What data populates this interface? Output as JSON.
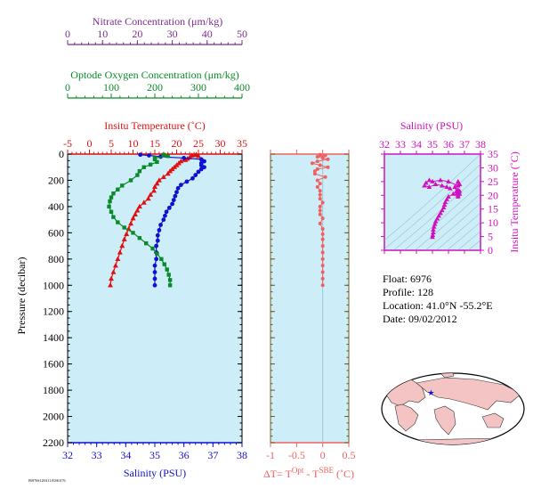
{
  "colors": {
    "nitrate": "#7b2d8e",
    "oxygen": "#0b8a2a",
    "temperature": "#e01010",
    "salinity": "#1010d0",
    "salinity_ts": "#d010c0",
    "delta_t": "#f06060",
    "plot_bg": "#cdeef8",
    "delta_axis": "#6b5a1a"
  },
  "info": {
    "float": "Float:  6976",
    "profile": "Profile:  128",
    "location": "Location:  41.0°N  -55.2°E",
    "date": "Date:  09/02/2012"
  },
  "footer_code": "F6976S128A11.E0A0176",
  "chart_data": [
    {
      "id": "main-profile",
      "type": "line",
      "ylabel": "Pressure (decibar)",
      "ylim": [
        2200,
        0
      ],
      "yticks": [
        0,
        200,
        400,
        600,
        800,
        1000,
        1200,
        1400,
        1600,
        1800,
        2000,
        2200
      ],
      "axes": {
        "nitrate": {
          "label": "Nitrate Concentration (μm/kg)",
          "range": [
            0,
            50
          ],
          "ticks": [
            0,
            10,
            20,
            30,
            40,
            50
          ]
        },
        "oxygen": {
          "label": "Optode Oxygen Concentration (μm/kg)",
          "range": [
            0,
            400
          ],
          "ticks": [
            0,
            100,
            200,
            300,
            400
          ]
        },
        "temperature": {
          "label": "Insitu Temperature (˚C)",
          "range": [
            -5,
            35
          ],
          "ticks": [
            -5,
            0,
            5,
            10,
            15,
            20,
            25,
            30,
            35
          ]
        },
        "salinity": {
          "label": "Salinity (PSU)",
          "range": [
            32,
            38
          ],
          "ticks": [
            32,
            33,
            34,
            35,
            36,
            37,
            38
          ]
        }
      },
      "series": [
        {
          "axis": "temperature",
          "marker": "triangle",
          "points": [
            [
              24.5,
              5
            ],
            [
              23.5,
              10
            ],
            [
              25,
              15
            ],
            [
              23,
              25
            ],
            [
              22.5,
              35
            ],
            [
              22,
              45
            ],
            [
              21,
              55
            ],
            [
              20.5,
              70
            ],
            [
              20,
              85
            ],
            [
              19.5,
              100
            ],
            [
              19,
              115
            ],
            [
              18.5,
              130
            ],
            [
              18,
              150
            ],
            [
              17,
              175
            ],
            [
              16,
              200
            ],
            [
              15.5,
              225
            ],
            [
              15,
              250
            ],
            [
              14.8,
              280
            ],
            [
              14,
              310
            ],
            [
              13.5,
              340
            ],
            [
              12.5,
              370
            ],
            [
              11.5,
              400
            ],
            [
              11,
              430
            ],
            [
              10.5,
              460
            ],
            [
              10,
              490
            ],
            [
              9.5,
              530
            ],
            [
              9,
              570
            ],
            [
              8.5,
              610
            ],
            [
              8,
              650
            ],
            [
              7.5,
              700
            ],
            [
              7,
              750
            ],
            [
              6.5,
              800
            ],
            [
              6,
              850
            ],
            [
              5.5,
              900
            ],
            [
              5,
              950
            ],
            [
              4.8,
              1000
            ]
          ]
        },
        {
          "axis": "salinity",
          "marker": "circle",
          "points": [
            [
              34.5,
              5
            ],
            [
              34.8,
              10
            ],
            [
              35.2,
              20
            ],
            [
              36,
              30
            ],
            [
              36.6,
              40
            ],
            [
              36.7,
              55
            ],
            [
              36.6,
              70
            ],
            [
              36.6,
              85
            ],
            [
              36.7,
              100
            ],
            [
              36.6,
              115
            ],
            [
              36.5,
              135
            ],
            [
              36.4,
              160
            ],
            [
              36.3,
              185
            ],
            [
              36.1,
              210
            ],
            [
              35.9,
              235
            ],
            [
              35.8,
              260
            ],
            [
              35.75,
              290
            ],
            [
              35.7,
              320
            ],
            [
              35.65,
              350
            ],
            [
              35.6,
              380
            ],
            [
              35.5,
              410
            ],
            [
              35.4,
              440
            ],
            [
              35.35,
              470
            ],
            [
              35.3,
              500
            ],
            [
              35.2,
              540
            ],
            [
              35.15,
              580
            ],
            [
              35.1,
              620
            ],
            [
              35.1,
              660
            ],
            [
              35.05,
              700
            ],
            [
              35.05,
              750
            ],
            [
              35.05,
              800
            ],
            [
              35,
              850
            ],
            [
              35,
              900
            ],
            [
              35,
              950
            ],
            [
              35,
              1000
            ]
          ]
        },
        {
          "axis": "oxygen",
          "marker": "square",
          "points": [
            [
              220,
              5
            ],
            [
              230,
              15
            ],
            [
              200,
              30
            ],
            [
              200,
              40
            ],
            [
              205,
              60
            ],
            [
              190,
              80
            ],
            [
              175,
              100
            ],
            [
              165,
              130
            ],
            [
              160,
              160
            ],
            [
              145,
              200
            ],
            [
              125,
              240
            ],
            [
              115,
              270
            ],
            [
              105,
              300
            ],
            [
              100,
              330
            ],
            [
              97,
              360
            ],
            [
              95,
              400
            ],
            [
              100,
              440
            ],
            [
              105,
              480
            ],
            [
              115,
              520
            ],
            [
              130,
              560
            ],
            [
              150,
              600
            ],
            [
              165,
              640
            ],
            [
              180,
              680
            ],
            [
              195,
              720
            ],
            [
              205,
              760
            ],
            [
              215,
              800
            ],
            [
              222,
              840
            ],
            [
              228,
              880
            ],
            [
              232,
              920
            ],
            [
              235,
              960
            ],
            [
              235,
              1000
            ]
          ]
        }
      ]
    },
    {
      "id": "delta-t",
      "type": "line",
      "xlabel": "ΔT= T",
      "xlabel_sup1": "Opt",
      "xlabel_mid": " - T",
      "xlabel_sup2": "SBE",
      "xlabel_end": " (˚C)",
      "xlim": [
        -1.0,
        0.5
      ],
      "xticks": [
        -1.0,
        -0.5,
        0.0,
        0.5
      ],
      "ylim": [
        2200,
        0
      ],
      "points": [
        [
          -0.05,
          5
        ],
        [
          0.05,
          10
        ],
        [
          -0.1,
          20
        ],
        [
          0.0,
          30
        ],
        [
          0.1,
          40
        ],
        [
          -0.1,
          55
        ],
        [
          -0.2,
          70
        ],
        [
          -0.05,
          85
        ],
        [
          0.1,
          100
        ],
        [
          -0.1,
          115
        ],
        [
          -0.15,
          130
        ],
        [
          -0.15,
          150
        ],
        [
          0.05,
          175
        ],
        [
          -0.1,
          200
        ],
        [
          -0.05,
          225
        ],
        [
          -0.1,
          250
        ],
        [
          -0.05,
          280
        ],
        [
          -0.05,
          310
        ],
        [
          -0.05,
          340
        ],
        [
          0.0,
          370
        ],
        [
          -0.05,
          400
        ],
        [
          -0.05,
          430
        ],
        [
          -0.05,
          460
        ],
        [
          0.0,
          490
        ],
        [
          -0.05,
          530
        ],
        [
          0.0,
          570
        ],
        [
          0.0,
          610
        ],
        [
          0.0,
          650
        ],
        [
          0.0,
          700
        ],
        [
          0.0,
          750
        ],
        [
          0.0,
          800
        ],
        [
          0.0,
          850
        ],
        [
          0.0,
          900
        ],
        [
          0.0,
          950
        ],
        [
          0.0,
          1000
        ]
      ]
    },
    {
      "id": "ts-diagram",
      "type": "scatter",
      "title": "Salinity (PSU)",
      "ylabel": "Insitu Temperature (˚C)",
      "xlim": [
        32,
        38
      ],
      "xticks": [
        32,
        33,
        34,
        35,
        36,
        37,
        38
      ],
      "ylim": [
        0,
        35
      ],
      "yticks": [
        0,
        5,
        10,
        15,
        20,
        25,
        30,
        35
      ],
      "points": [
        [
          35.0,
          4.8
        ],
        [
          35.02,
          5.5
        ],
        [
          35.05,
          6.5
        ],
        [
          35.05,
          7.5
        ],
        [
          35.1,
          8.5
        ],
        [
          35.15,
          9.5
        ],
        [
          35.2,
          10.5
        ],
        [
          35.3,
          11.5
        ],
        [
          35.4,
          12.5
        ],
        [
          35.5,
          13.5
        ],
        [
          35.6,
          14.5
        ],
        [
          35.7,
          15.5
        ],
        [
          35.75,
          16.5
        ],
        [
          35.8,
          17.5
        ],
        [
          35.9,
          18.5
        ],
        [
          36.0,
          19.5
        ],
        [
          36.3,
          20.5
        ],
        [
          36.5,
          21.5
        ],
        [
          36.6,
          22
        ],
        [
          36.6,
          21
        ],
        [
          36.5,
          20.5
        ],
        [
          36.6,
          20
        ],
        [
          36.7,
          21.5
        ],
        [
          36.7,
          20.5
        ],
        [
          36.6,
          19.5
        ],
        [
          36.4,
          23
        ],
        [
          36.6,
          25
        ],
        [
          36.7,
          24
        ],
        [
          36.6,
          23.5
        ],
        [
          36.0,
          25
        ],
        [
          35.5,
          25.5
        ],
        [
          35.0,
          25
        ],
        [
          34.8,
          25.5
        ],
        [
          34.6,
          24.5
        ],
        [
          34.5,
          23.5
        ],
        [
          34.8,
          23
        ],
        [
          35.2,
          24
        ],
        [
          35.6,
          23.5
        ],
        [
          35.9,
          23
        ],
        [
          36.1,
          22.5
        ]
      ]
    },
    {
      "id": "world-map",
      "type": "map",
      "marker_lat": 41.0,
      "marker_lon": -55.2
    }
  ]
}
